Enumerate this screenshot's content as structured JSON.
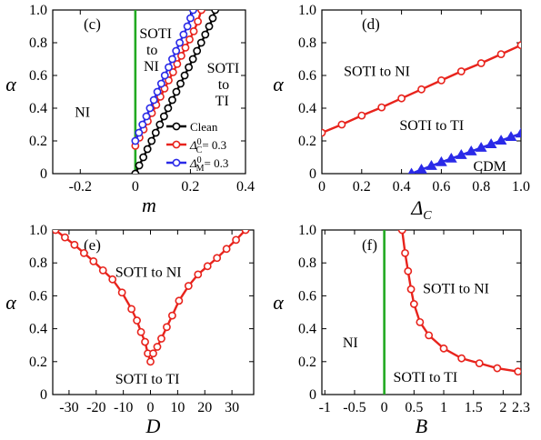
{
  "chart_data": [
    {
      "panel": "(c)",
      "type": "line",
      "xlabel": "m",
      "ylabel": "α",
      "xlim": [
        -0.3,
        0.4
      ],
      "ylim": [
        0,
        1.0
      ],
      "xticks": [
        "-0.2",
        "0",
        "0.2",
        "0.4"
      ],
      "xtick_values": [
        -0.2,
        0,
        0.2,
        0.4
      ],
      "yticks": [
        "0",
        "0.2",
        "0.4",
        "0.6",
        "0.8",
        "1.0"
      ],
      "ytick_values": [
        0,
        0.2,
        0.4,
        0.6,
        0.8,
        1.0
      ],
      "vline": {
        "x": 0,
        "y": [
          0,
          1.0
        ],
        "color": "#22aa22"
      },
      "series": [
        {
          "name": "Clean",
          "color": "#000000",
          "marker": "circle",
          "x": [
            0,
            0.014,
            0.029,
            0.044,
            0.059,
            0.074,
            0.089,
            0.104,
            0.119,
            0.134,
            0.149,
            0.164,
            0.179,
            0.194,
            0.209,
            0.224,
            0.239,
            0.254,
            0.268,
            0.281,
            0.29
          ],
          "y": [
            0,
            0.05,
            0.1,
            0.15,
            0.2,
            0.25,
            0.3,
            0.35,
            0.4,
            0.45,
            0.5,
            0.55,
            0.6,
            0.65,
            0.7,
            0.75,
            0.8,
            0.85,
            0.9,
            0.95,
            1.0
          ]
        },
        {
          "name": "Δ_C^0 = 0.3",
          "color": "#e8231c",
          "marker": "circle",
          "x": [
            0,
            0.015,
            0.03,
            0.045,
            0.06,
            0.076,
            0.091,
            0.106,
            0.121,
            0.137,
            0.152,
            0.167,
            0.182,
            0.197,
            0.212,
            0.227,
            0.24
          ],
          "y": [
            0.17,
            0.22,
            0.27,
            0.32,
            0.37,
            0.42,
            0.47,
            0.52,
            0.57,
            0.62,
            0.67,
            0.72,
            0.77,
            0.82,
            0.87,
            0.93,
            1.0
          ]
        },
        {
          "name": "Δ_M^0 = 0.3",
          "color": "#2a2ae8",
          "marker": "circle",
          "x": [
            0,
            0.013,
            0.026,
            0.04,
            0.053,
            0.067,
            0.08,
            0.094,
            0.107,
            0.121,
            0.134,
            0.148,
            0.161,
            0.175,
            0.189,
            0.2,
            0.21
          ],
          "y": [
            0.2,
            0.25,
            0.3,
            0.35,
            0.4,
            0.45,
            0.5,
            0.55,
            0.6,
            0.65,
            0.7,
            0.75,
            0.8,
            0.85,
            0.9,
            0.95,
            1.0
          ]
        }
      ],
      "annotations": [
        {
          "text": "NI",
          "x": -0.22,
          "y": 0.38
        },
        {
          "text": "SOTI",
          "x": 0.015,
          "y": 0.86
        },
        {
          "text": "to",
          "x": 0.04,
          "y": 0.76
        },
        {
          "text": "NI",
          "x": 0.03,
          "y": 0.66
        },
        {
          "text": "SOTI",
          "x": 0.26,
          "y": 0.65
        },
        {
          "text": "to",
          "x": 0.3,
          "y": 0.55
        },
        {
          "text": "TI",
          "x": 0.29,
          "y": 0.45
        }
      ]
    },
    {
      "panel": "(d)",
      "type": "line",
      "xlabel": "Δ_C",
      "ylabel": "α",
      "xlim": [
        0,
        1.0
      ],
      "ylim": [
        0,
        1.0
      ],
      "xticks": [
        "0",
        "0.2",
        "0.4",
        "0.6",
        "0.8",
        "1.0"
      ],
      "xtick_values": [
        0,
        0.2,
        0.4,
        0.6,
        0.8,
        1.0
      ],
      "yticks": [
        "0",
        "0.2",
        "0.4",
        "0.6",
        "0.8",
        "1.0"
      ],
      "ytick_values": [
        0,
        0.2,
        0.4,
        0.6,
        0.8,
        1.0
      ],
      "series": [
        {
          "name": "",
          "color": "#e8231c",
          "marker": "circle",
          "x": [
            0,
            0.1,
            0.2,
            0.3,
            0.4,
            0.5,
            0.6,
            0.7,
            0.8,
            0.9,
            1.0
          ],
          "y": [
            0.25,
            0.3,
            0.355,
            0.405,
            0.46,
            0.515,
            0.57,
            0.625,
            0.675,
            0.73,
            0.785
          ]
        },
        {
          "name": "",
          "color": "#2a2ae8",
          "marker": "triangle",
          "x": [
            0.45,
            0.5,
            0.55,
            0.6,
            0.65,
            0.7,
            0.75,
            0.8,
            0.85,
            0.9,
            0.95,
            1.0
          ],
          "y": [
            0.0,
            0.025,
            0.047,
            0.07,
            0.092,
            0.114,
            0.136,
            0.158,
            0.18,
            0.202,
            0.224,
            0.245
          ]
        }
      ],
      "annotations": [
        {
          "text": "SOTI to NI",
          "x": 0.11,
          "y": 0.63
        },
        {
          "text": "SOTI to TI",
          "x": 0.39,
          "y": 0.3
        },
        {
          "text": "CDM",
          "x": 0.76,
          "y": 0.05
        }
      ]
    },
    {
      "panel": "(e)",
      "type": "line",
      "xlabel": "D",
      "ylabel": "α",
      "xlim": [
        -36,
        38
      ],
      "ylim": [
        0,
        1.0
      ],
      "xticks": [
        "-30",
        "-20",
        "-10",
        "0",
        "10",
        "20",
        "30"
      ],
      "xtick_values": [
        -30,
        -20,
        -10,
        0,
        10,
        20,
        30
      ],
      "yticks": [
        "0",
        "0.2",
        "0.4",
        "0.6",
        "0.8",
        "1.0"
      ],
      "ytick_values": [
        0,
        0.2,
        0.4,
        0.6,
        0.8,
        1.0
      ],
      "series": [
        {
          "name": "",
          "color": "#e8231c",
          "marker": "circle",
          "x": [
            -35,
            -31.5,
            -28,
            -24.5,
            -21,
            -17.5,
            -14,
            -10.5,
            -7,
            -5,
            -3.5,
            -2,
            -1,
            0,
            1,
            2.5,
            4,
            6,
            8,
            10.5,
            14,
            17.5,
            21,
            24.5,
            28,
            31.5,
            35
          ],
          "y": [
            1.0,
            0.955,
            0.91,
            0.86,
            0.81,
            0.755,
            0.7,
            0.62,
            0.52,
            0.45,
            0.38,
            0.32,
            0.25,
            0.2,
            0.25,
            0.29,
            0.34,
            0.41,
            0.48,
            0.57,
            0.66,
            0.73,
            0.78,
            0.83,
            0.885,
            0.94,
            1.0
          ]
        }
      ],
      "annotations": [
        {
          "text": "SOTI to NI",
          "x": -13,
          "y": 0.75
        },
        {
          "text": "SOTI to TI",
          "x": -13,
          "y": 0.1
        }
      ]
    },
    {
      "panel": "(f)",
      "type": "line",
      "xlabel": "B",
      "ylabel": "α",
      "xlim": [
        -1.05,
        2.3
      ],
      "ylim": [
        0,
        1.0
      ],
      "xticks": [
        "-1",
        "-0.5",
        "0",
        "0.5",
        "1",
        "1.5",
        "2",
        "2.3"
      ],
      "xtick_values": [
        -1,
        -0.5,
        0,
        0.5,
        1,
        1.5,
        2,
        2.3
      ],
      "yticks": [
        "0",
        "0.2",
        "0.4",
        "0.6",
        "0.8",
        "1.0"
      ],
      "ytick_values": [
        0,
        0.2,
        0.4,
        0.6,
        0.8,
        1.0
      ],
      "vline": {
        "x": 0,
        "y": [
          0,
          1.0
        ],
        "color": "#22aa22"
      },
      "series": [
        {
          "name": "",
          "color": "#e8231c",
          "marker": "circle",
          "x": [
            0.3,
            0.35,
            0.4,
            0.45,
            0.5,
            0.6,
            0.75,
            1.0,
            1.3,
            1.6,
            1.9,
            2.25
          ],
          "y": [
            1.0,
            0.86,
            0.75,
            0.64,
            0.55,
            0.44,
            0.36,
            0.28,
            0.22,
            0.19,
            0.16,
            0.14
          ]
        }
      ],
      "annotations": [
        {
          "text": "NI",
          "x": -0.7,
          "y": 0.32
        },
        {
          "text": "SOTI to NI",
          "x": 0.65,
          "y": 0.65
        },
        {
          "text": "SOTI to TI",
          "x": 0.15,
          "y": 0.11
        }
      ]
    }
  ]
}
